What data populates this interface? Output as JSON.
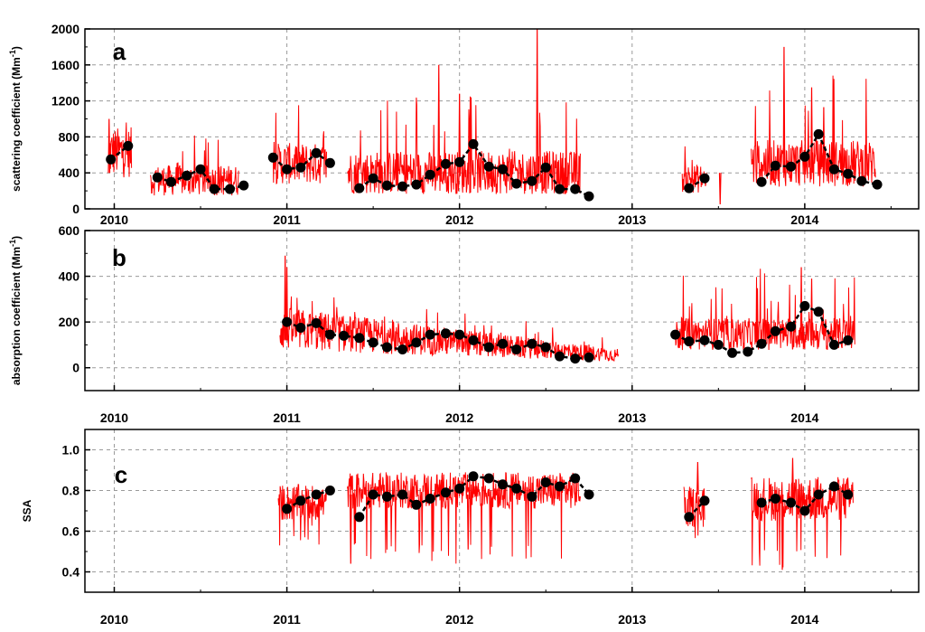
{
  "chart_data": [
    {
      "type": "line",
      "panel_label": "a",
      "ylabel": "scattering coefficient (Mm",
      "ylabel_sup": "-1",
      "ylabel_end": ")",
      "ylim": [
        0,
        2000
      ],
      "yticks": [
        0,
        400,
        800,
        1200,
        1600,
        2000
      ],
      "ytick_labels": [
        "0",
        "400",
        "800",
        "1200",
        "1600",
        "2000"
      ],
      "xlim": [
        2009.83,
        2014.66
      ],
      "xticks": [
        2010,
        2011,
        2012,
        2013,
        2014
      ],
      "xtick_labels": [
        "2010",
        "2011",
        "2012",
        "2013",
        "2014"
      ],
      "grid": true,
      "colors": {
        "daily": "#ff0000",
        "monthly": "#000000"
      },
      "series": [
        {
          "style": "daily-line",
          "segments": [
            {
              "start": 2009.97,
              "end": 2010.1,
              "base": 600,
              "amp": 280,
              "spike_max": 1250
            },
            {
              "start": 2010.21,
              "end": 2010.72,
              "base": 300,
              "amp": 170,
              "spike_max": 820
            },
            {
              "start": 2010.92,
              "end": 2011.23,
              "base": 480,
              "amp": 230,
              "spike_max": 1180
            },
            {
              "start": 2011.35,
              "end": 2012.7,
              "base": 380,
              "amp": 240,
              "spike_max": 1300
            },
            {
              "start": 2013.29,
              "end": 2013.43,
              "base": 320,
              "amp": 160,
              "spike_max": 700
            },
            {
              "start": 2013.69,
              "end": 2014.41,
              "base": 480,
              "amp": 260,
              "spike_max": 1800
            }
          ],
          "spikes": [
            {
              "x": 2012.45,
              "y": 2000
            },
            {
              "x": 2011.88,
              "y": 1600
            },
            {
              "x": 2012.0,
              "y": 1280
            },
            {
              "x": 2013.88,
              "y": 1800
            },
            {
              "x": 2014.04,
              "y": 1350
            },
            {
              "x": 2014.11,
              "y": 1130
            },
            {
              "x": 2009.97,
              "y": 1000
            },
            {
              "x": 2013.51,
              "y": 50
            }
          ]
        },
        {
          "style": "monthly-markers",
          "segments": [
            {
              "x": [
                2009.98,
                2010.08
              ],
              "y": [
                550,
                700
              ]
            },
            {
              "x": [
                2010.25,
                2010.33,
                2010.42,
                2010.5,
                2010.58,
                2010.67,
                2010.75
              ],
              "y": [
                350,
                300,
                370,
                440,
                220,
                220,
                260
              ]
            },
            {
              "x": [
                2010.92,
                2011.0,
                2011.08,
                2011.17,
                2011.25
              ],
              "y": [
                570,
                440,
                460,
                620,
                510
              ]
            },
            {
              "x": [
                2011.42,
                2011.5,
                2011.58,
                2011.67,
                2011.75,
                2011.83,
                2011.92,
                2012.0,
                2012.08,
                2012.17,
                2012.25,
                2012.33,
                2012.42,
                2012.5,
                2012.58,
                2012.67,
                2012.75
              ],
              "y": [
                230,
                340,
                260,
                250,
                270,
                380,
                500,
                520,
                720,
                470,
                440,
                280,
                310,
                460,
                220,
                220,
                140
              ]
            },
            {
              "x": [
                2013.33,
                2013.42
              ],
              "y": [
                230,
                340
              ]
            },
            {
              "x": [
                2013.75,
                2013.83,
                2013.92,
                2014.0,
                2014.08,
                2014.17,
                2014.25,
                2014.33,
                2014.42
              ],
              "y": [
                300,
                480,
                470,
                580,
                830,
                440,
                390,
                310,
                270
              ]
            }
          ]
        }
      ]
    },
    {
      "type": "line",
      "panel_label": "b",
      "ylabel": "absorption coefficient (Mm",
      "ylabel_sup": "-1",
      "ylabel_end": ")",
      "ylim": [
        -100,
        600
      ],
      "yticks": [
        0,
        200,
        400,
        600
      ],
      "ytick_labels": [
        "0",
        "200",
        "400",
        "600"
      ],
      "xlim": [
        2009.83,
        2014.66
      ],
      "xticks": [
        2010,
        2011,
        2012,
        2013,
        2014
      ],
      "xtick_labels": [
        "2010",
        "2011",
        "2012",
        "2013",
        "2014"
      ],
      "grid": true,
      "colors": {
        "daily": "#ff0000",
        "monthly": "#000000"
      },
      "series": [
        {
          "style": "daily-line",
          "segments": [
            {
              "start": 2010.96,
              "end": 2012.92,
              "base": 130,
              "amp": 80,
              "spike_max": 320,
              "decay": true
            },
            {
              "start": 2013.25,
              "end": 2014.29,
              "base": 140,
              "amp": 70,
              "spike_max": 440
            }
          ],
          "spikes": [
            {
              "x": 2010.99,
              "y": 490
            },
            {
              "x": 2011.0,
              "y": 440
            },
            {
              "x": 2013.98,
              "y": 440
            },
            {
              "x": 2014.04,
              "y": 390
            }
          ]
        },
        {
          "style": "monthly-markers",
          "segments": [
            {
              "x": [
                2011.0,
                2011.08,
                2011.17,
                2011.25,
                2011.33,
                2011.42,
                2011.5,
                2011.58,
                2011.67,
                2011.75,
                2011.83,
                2011.92,
                2012.0,
                2012.08,
                2012.17,
                2012.25,
                2012.33,
                2012.42,
                2012.5,
                2012.58,
                2012.67,
                2012.75
              ],
              "y": [
                200,
                175,
                195,
                145,
                140,
                130,
                110,
                90,
                80,
                110,
                145,
                150,
                145,
                120,
                90,
                105,
                80,
                105,
                90,
                50,
                40,
                45
              ]
            },
            {
              "x": [
                2013.25,
                2013.33,
                2013.42,
                2013.5,
                2013.58,
                2013.67,
                2013.75,
                2013.83,
                2013.92,
                2014.0,
                2014.08,
                2014.17,
                2014.25
              ],
              "y": [
                145,
                115,
                120,
                100,
                65,
                70,
                105,
                160,
                180,
                270,
                245,
                100,
                120
              ]
            }
          ]
        }
      ]
    },
    {
      "type": "line",
      "panel_label": "c",
      "ylabel": "SSA",
      "ylim": [
        0.3,
        1.1
      ],
      "yticks": [
        0.4,
        0.6,
        0.8,
        1.0
      ],
      "ytick_labels": [
        "0.4",
        "0.6",
        "0.8",
        "1.0"
      ],
      "xlim": [
        2009.83,
        2014.66
      ],
      "xticks": [
        2010,
        2011,
        2012,
        2013,
        2014
      ],
      "xtick_labels": [
        "2010",
        "2011",
        "2012",
        "2013",
        "2014"
      ],
      "grid": true,
      "colors": {
        "daily": "#ff0000",
        "monthly": "#000000"
      },
      "series": [
        {
          "style": "daily-line",
          "segments": [
            {
              "start": 2010.95,
              "end": 2011.23,
              "base": 0.74,
              "amp": 0.09,
              "spike_min": 0.53
            },
            {
              "start": 2011.35,
              "end": 2012.7,
              "base": 0.8,
              "amp": 0.09,
              "spike_min": 0.44
            },
            {
              "start": 2013.3,
              "end": 2013.42,
              "base": 0.72,
              "amp": 0.1,
              "spike_min": 0.56
            },
            {
              "start": 2013.69,
              "end": 2014.28,
              "base": 0.76,
              "amp": 0.11,
              "spike_min": 0.41
            }
          ],
          "spikes": [
            {
              "x": 2011.37,
              "y": 0.44
            },
            {
              "x": 2012.05,
              "y": 0.51
            },
            {
              "x": 2013.87,
              "y": 0.41
            },
            {
              "x": 2013.93,
              "y": 0.96
            },
            {
              "x": 2013.38,
              "y": 0.94
            }
          ]
        },
        {
          "style": "monthly-markers",
          "segments": [
            {
              "x": [
                2011.0,
                2011.08,
                2011.17,
                2011.25
              ],
              "y": [
                0.71,
                0.75,
                0.78,
                0.8
              ]
            },
            {
              "x": [
                2011.42,
                2011.5,
                2011.58,
                2011.67,
                2011.75,
                2011.83,
                2011.92,
                2012.0,
                2012.08,
                2012.17,
                2012.25,
                2012.33,
                2012.42,
                2012.5,
                2012.58,
                2012.67,
                2012.75
              ],
              "y": [
                0.67,
                0.78,
                0.77,
                0.78,
                0.73,
                0.76,
                0.79,
                0.81,
                0.87,
                0.86,
                0.83,
                0.81,
                0.77,
                0.84,
                0.82,
                0.86,
                0.78
              ]
            },
            {
              "x": [
                2013.33,
                2013.42
              ],
              "y": [
                0.67,
                0.75
              ]
            },
            {
              "x": [
                2013.75,
                2013.83,
                2013.92,
                2014.0,
                2014.08,
                2014.17,
                2014.25
              ],
              "y": [
                0.74,
                0.76,
                0.74,
                0.7,
                0.78,
                0.82,
                0.78
              ]
            }
          ]
        }
      ]
    }
  ]
}
